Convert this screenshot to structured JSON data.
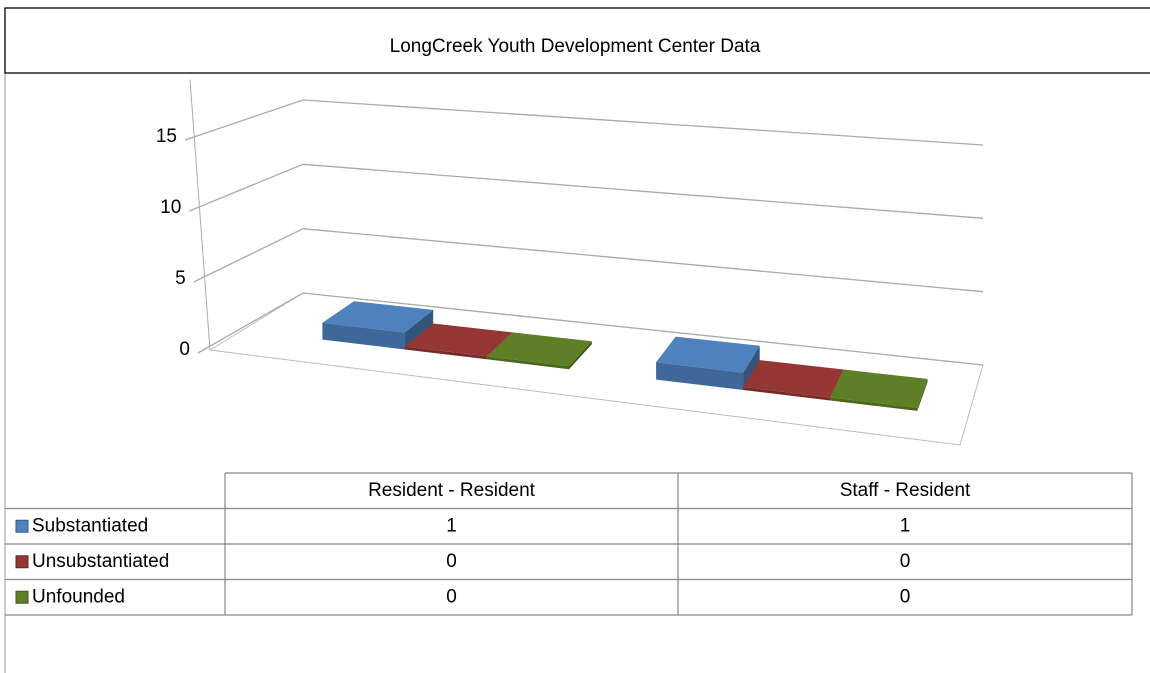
{
  "chart_data": {
    "type": "bar3d",
    "title": "LongCreek Youth Development Center Data",
    "categories": [
      "Resident - Resident",
      "Staff - Resident"
    ],
    "series": [
      {
        "name": "Substantiated",
        "color": "#4f81bd",
        "values": [
          1,
          1
        ]
      },
      {
        "name": "Unsubstantiated",
        "color": "#943634",
        "values": [
          0,
          0
        ]
      },
      {
        "name": "Unfounded",
        "color": "#5f7f26",
        "values": [
          0,
          0
        ]
      }
    ],
    "ylim": [
      0,
      15
    ],
    "yticks": [
      0,
      5,
      10,
      15
    ],
    "grid": true
  }
}
